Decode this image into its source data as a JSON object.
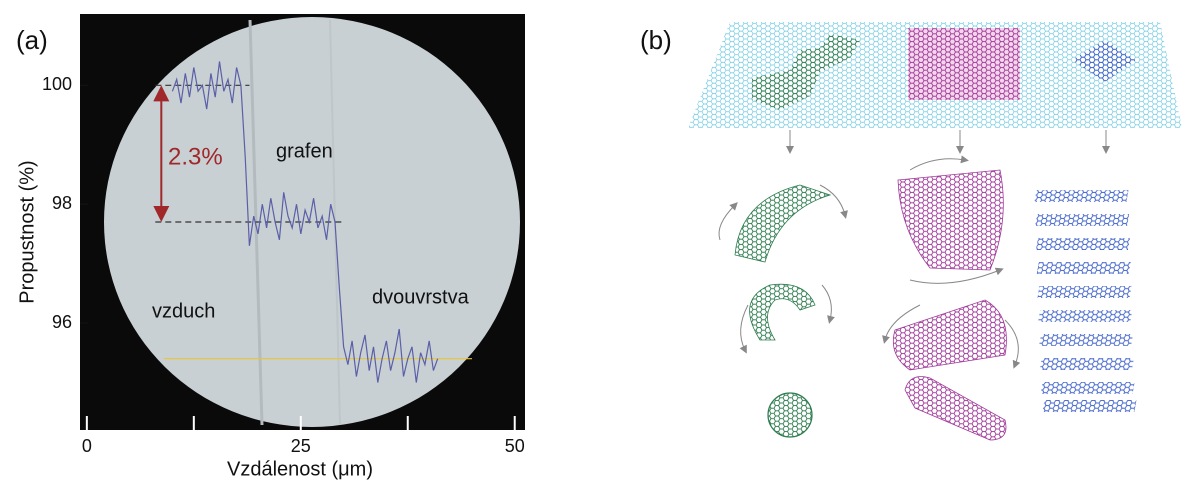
{
  "chart_data": {
    "type": "line",
    "panel_label": "(a)",
    "x_label": "Vzdálenost (μm)",
    "y_label": "Propustnost (%)",
    "xlim": [
      -0.8,
      51.2
    ],
    "ylim": [
      94.2,
      101.2
    ],
    "xticks": [
      0,
      25,
      50
    ],
    "xminorticks": [
      12.5,
      37.5
    ],
    "yticks": [
      96,
      98,
      100
    ],
    "color": "#5a5fa8",
    "x": [
      10,
      10.5,
      11,
      11.5,
      12,
      12.5,
      13,
      13.5,
      14,
      14.5,
      15,
      15.5,
      16,
      16.5,
      17,
      17.5,
      18,
      18.5,
      19,
      19.5,
      20,
      20.5,
      21,
      21.5,
      22,
      22.5,
      23,
      23.5,
      24,
      24.5,
      25,
      25.5,
      26,
      26.5,
      27,
      27.5,
      28,
      28.5,
      29,
      29.5,
      30,
      30.5,
      31,
      31.5,
      32,
      32.5,
      33,
      33.5,
      34,
      34.5,
      35,
      35.5,
      36,
      36.5,
      37,
      37.5,
      38,
      38.5,
      39,
      39.5,
      40,
      40.5,
      41
    ],
    "values": [
      99.9,
      100.1,
      99.7,
      100.2,
      99.8,
      100.3,
      99.9,
      100.0,
      99.6,
      100.2,
      99.8,
      100.4,
      99.9,
      100.1,
      99.7,
      100.3,
      100.0,
      98.8,
      97.3,
      97.8,
      97.5,
      98.0,
      97.6,
      98.1,
      97.7,
      97.4,
      98.2,
      97.8,
      97.6,
      98.0,
      97.5,
      97.9,
      97.7,
      98.1,
      97.6,
      97.8,
      97.4,
      98.0,
      97.7,
      96.6,
      95.6,
      95.3,
      95.7,
      95.1,
      95.5,
      95.8,
      95.2,
      95.6,
      95.0,
      95.4,
      95.7,
      95.2,
      95.5,
      95.9,
      95.1,
      95.4,
      95.6,
      95.0,
      95.5,
      95.3,
      95.7,
      95.2,
      95.4
    ],
    "reference_lines": [
      {
        "y": 100,
        "x": [
          8,
          19
        ],
        "color": "#333333",
        "dashed": true
      },
      {
        "y": 97.7,
        "x": [
          8,
          30
        ],
        "color": "#333333",
        "dashed": true
      },
      {
        "y": 95.4,
        "x": [
          9,
          45
        ],
        "color": "#e8c53a",
        "dashed": false
      }
    ],
    "arrow_color": "#a0282a",
    "annotations": [
      "2.3%",
      "grafen",
      "vzduch",
      "dvouvrstva"
    ]
  },
  "diagram": {
    "panel_label": "(b)"
  }
}
